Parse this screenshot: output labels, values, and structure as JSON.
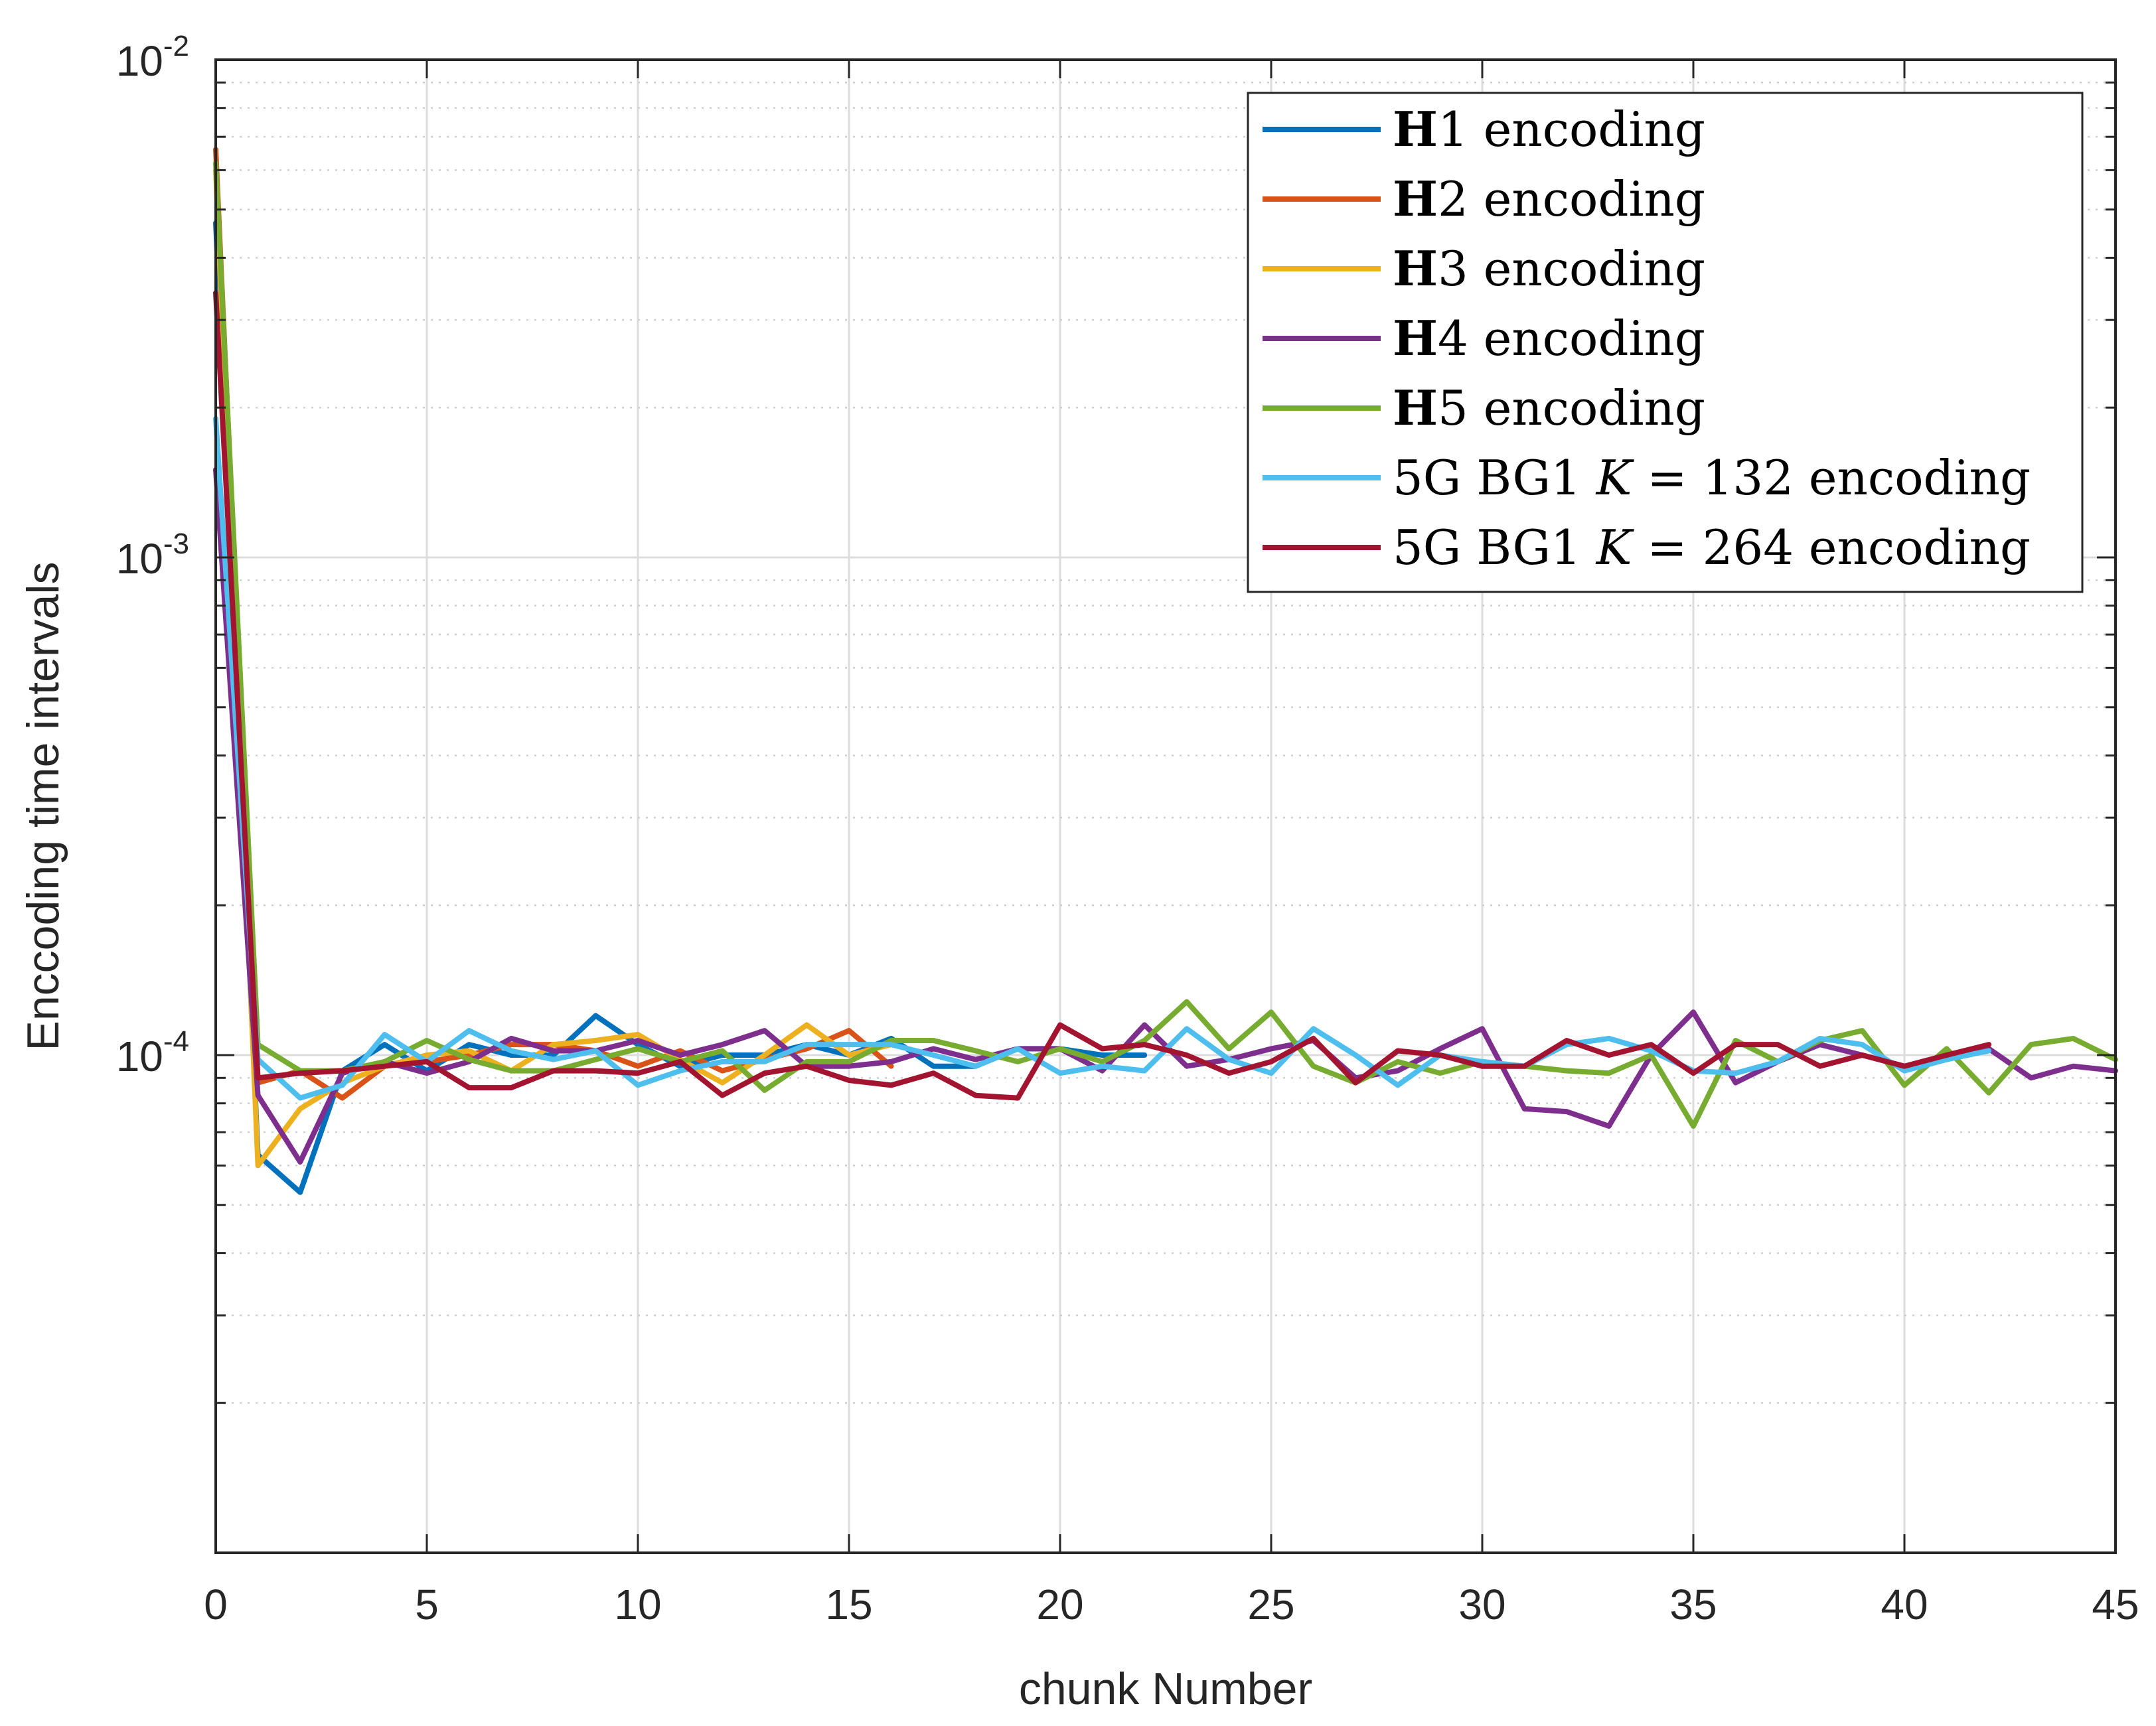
{
  "chart_data": {
    "type": "line",
    "xlabel": "chunk Number",
    "ylabel": "Enccoding time intervals",
    "xlim": [
      0,
      45
    ],
    "ylim": [
      1e-05,
      0.01
    ],
    "yscale": "log",
    "grid": true,
    "legend_position": "top-right",
    "x_ticks": [
      "0",
      "5",
      "10",
      "15",
      "20",
      "25",
      "30",
      "35",
      "40",
      "45"
    ],
    "y_ticks": [
      {
        "base": "10",
        "exp": "-2",
        "value": 0.01
      },
      {
        "base": "10",
        "exp": "-3",
        "value": 0.001
      },
      {
        "base": "10",
        "exp": "-4",
        "value": 0.0001
      }
    ],
    "series": [
      {
        "legend": {
          "bold": "H",
          "text": "1 encoding"
        },
        "color": "#0072BD",
        "x": [
          0,
          1,
          2,
          3,
          4,
          5,
          6,
          7,
          8,
          9,
          10,
          11,
          12,
          13,
          14,
          15,
          16,
          17,
          18,
          19,
          20,
          21,
          22
        ],
        "y": [
          0.0047,
          6.3e-05,
          5.3e-05,
          9.3e-05,
          0.000105,
          9.3e-05,
          0.000105,
          0.0001,
          0.0001,
          0.00012,
          0.000105,
          9.5e-05,
          0.0001,
          0.0001,
          0.000105,
          0.0001,
          0.000108,
          9.5e-05,
          9.5e-05,
          0.000103,
          0.000103,
          0.0001,
          0.0001
        ]
      },
      {
        "legend": {
          "bold": "H",
          "text": "2 encoding"
        },
        "color": "#D95319",
        "x": [
          0,
          1,
          2,
          3,
          4,
          5,
          6,
          7,
          8,
          9,
          10,
          11,
          12,
          13,
          14,
          15,
          16
        ],
        "y": [
          0.0066,
          8.8e-05,
          9.3e-05,
          8.2e-05,
          9.5e-05,
          9.7e-05,
          0.0001,
          0.000105,
          0.000105,
          0.000102,
          9.5e-05,
          0.000102,
          9.3e-05,
          9.8e-05,
          0.000103,
          0.000112,
          9.5e-05
        ]
      },
      {
        "legend": {
          "bold": "H",
          "text": "3 encoding"
        },
        "color": "#EDB120",
        "x": [
          0,
          1,
          2,
          3,
          4,
          5,
          6,
          7,
          8,
          9,
          10,
          11,
          12,
          13,
          14,
          15,
          16
        ],
        "y": [
          0.006,
          6e-05,
          7.8e-05,
          8.8e-05,
          9.5e-05,
          0.0001,
          0.000102,
          9.3e-05,
          0.000105,
          0.000107,
          0.00011,
          9.8e-05,
          8.8e-05,
          0.0001,
          0.000115,
          0.0001,
          0.000105
        ]
      },
      {
        "legend": {
          "bold": "H",
          "text": "4 encoding"
        },
        "color": "#7E2F8E",
        "x": [
          0,
          1,
          2,
          3,
          4,
          5,
          6,
          7,
          8,
          9,
          10,
          11,
          12,
          13,
          14,
          15,
          16,
          17,
          18,
          19,
          20,
          21,
          22,
          23,
          24,
          25,
          26,
          27,
          28,
          29,
          30,
          31,
          32,
          33,
          34,
          35,
          36,
          37,
          38,
          39,
          40,
          41,
          42,
          43,
          44,
          45
        ],
        "y": [
          0.0015,
          8.3e-05,
          6.1e-05,
          9.2e-05,
          9.7e-05,
          9.2e-05,
          9.7e-05,
          0.000108,
          0.000102,
          0.000102,
          0.000107,
          0.0001,
          0.000105,
          0.000112,
          9.5e-05,
          9.5e-05,
          9.7e-05,
          0.000103,
          9.8e-05,
          0.000103,
          0.000103,
          9.3e-05,
          0.000115,
          9.5e-05,
          9.8e-05,
          0.000103,
          0.000107,
          9e-05,
          9.3e-05,
          0.000103,
          0.000113,
          7.8e-05,
          7.7e-05,
          7.2e-05,
          0.0001,
          0.000122,
          8.8e-05,
          9.7e-05,
          0.000105,
          0.0001,
          9.5e-05,
          9.8e-05,
          0.000103,
          9e-05,
          9.5e-05,
          9.3e-05
        ]
      },
      {
        "legend": {
          "bold": "H",
          "text": "5 encoding"
        },
        "color": "#77AC30",
        "x": [
          0,
          1,
          2,
          3,
          4,
          5,
          6,
          7,
          8,
          9,
          10,
          11,
          12,
          13,
          14,
          15,
          16,
          17,
          18,
          19,
          20,
          21,
          22,
          23,
          24,
          25,
          26,
          27,
          28,
          29,
          30,
          31,
          32,
          33,
          34,
          35,
          36,
          37,
          38,
          39,
          40,
          41,
          42,
          43,
          44,
          45
        ],
        "y": [
          0.0062,
          0.000105,
          9.3e-05,
          9.3e-05,
          9.7e-05,
          0.000107,
          9.8e-05,
          9.3e-05,
          9.3e-05,
          9.8e-05,
          0.000103,
          9.7e-05,
          0.000102,
          8.5e-05,
          9.7e-05,
          9.7e-05,
          0.000107,
          0.000107,
          0.000102,
          9.7e-05,
          0.000103,
          9.7e-05,
          0.000107,
          0.000128,
          0.000103,
          0.000122,
          9.5e-05,
          8.8e-05,
          9.7e-05,
          9.2e-05,
          9.7e-05,
          9.5e-05,
          9.3e-05,
          9.2e-05,
          0.0001,
          7.2e-05,
          0.000107,
          9.7e-05,
          0.000107,
          0.000112,
          8.7e-05,
          0.000103,
          8.4e-05,
          0.000105,
          0.000108,
          9.8e-05
        ]
      },
      {
        "legend": {
          "text": "5G BG1 ",
          "italic": "K",
          "text2": " = 132 encoding"
        },
        "color": "#4DBEEE",
        "x": [
          0,
          1,
          2,
          3,
          4,
          5,
          6,
          7,
          8,
          9,
          10,
          11,
          12,
          13,
          14,
          15,
          16,
          17,
          18,
          19,
          20,
          21,
          22,
          23,
          24,
          25,
          26,
          27,
          28,
          29,
          30,
          31,
          32,
          33,
          34,
          35,
          36,
          37,
          38,
          39,
          40,
          41,
          42
        ],
        "y": [
          0.0019,
          9.8e-05,
          8.2e-05,
          8.7e-05,
          0.00011,
          9.7e-05,
          0.000112,
          0.000102,
          9.8e-05,
          0.000102,
          8.7e-05,
          9.3e-05,
          9.7e-05,
          9.7e-05,
          0.000105,
          0.000105,
          0.000105,
          0.0001,
          9.5e-05,
          0.000103,
          9.2e-05,
          9.5e-05,
          9.3e-05,
          0.000113,
          9.8e-05,
          9.2e-05,
          0.000113,
          0.0001,
          8.7e-05,
          0.0001,
          9.7e-05,
          9.5e-05,
          0.000105,
          0.000108,
          0.000102,
          9.3e-05,
          9.2e-05,
          9.7e-05,
          0.000108,
          0.000105,
          9.3e-05,
          9.8e-05,
          0.000102
        ]
      },
      {
        "legend": {
          "text": "5G BG1 ",
          "italic": "K",
          "text2": " = 264 encoding"
        },
        "color": "#A2142F",
        "x": [
          0,
          1,
          2,
          3,
          4,
          5,
          6,
          7,
          8,
          9,
          10,
          11,
          12,
          13,
          14,
          15,
          16,
          17,
          18,
          19,
          20,
          21,
          22,
          23,
          24,
          25,
          26,
          27,
          28,
          29,
          30,
          31,
          32,
          33,
          34,
          35,
          36,
          37,
          38,
          39,
          40,
          41,
          42
        ],
        "y": [
          0.0034,
          9e-05,
          9.2e-05,
          9.3e-05,
          9.5e-05,
          9.7e-05,
          8.6e-05,
          8.6e-05,
          9.3e-05,
          9.3e-05,
          9.2e-05,
          9.7e-05,
          8.3e-05,
          9.2e-05,
          9.5e-05,
          8.9e-05,
          8.7e-05,
          9.2e-05,
          8.3e-05,
          8.2e-05,
          0.000115,
          0.000103,
          0.000105,
          0.0001,
          9.2e-05,
          9.7e-05,
          0.000108,
          8.8e-05,
          0.000102,
          0.0001,
          9.5e-05,
          9.5e-05,
          0.000107,
          0.0001,
          0.000105,
          9.2e-05,
          0.000105,
          0.000105,
          9.5e-05,
          0.0001,
          9.5e-05,
          0.0001,
          0.000105
        ]
      }
    ]
  }
}
